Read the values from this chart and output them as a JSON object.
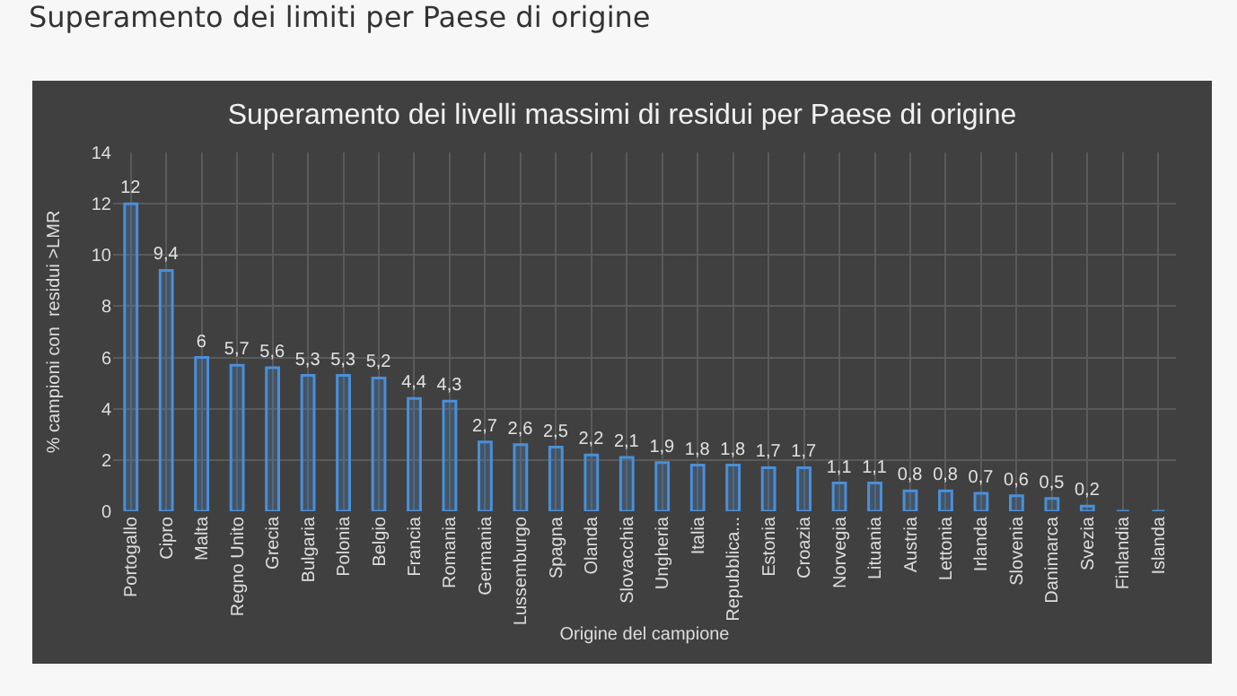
{
  "chart_data": {
    "type": "bar",
    "title": "Superamento dei limiti per Paese di origine",
    "subtitle": "Superamento dei livelli massimi di residui per Paese di origine",
    "xlabel": "Origine del campione",
    "ylabel": "% campioni con  residui >LMR",
    "categories": [
      "Portogallo",
      "Cipro",
      "Malta",
      "Regno Unito",
      "Grecia",
      "Bulgaria",
      "Polonia",
      "Belgio",
      "Francia",
      "Romania",
      "Germania",
      "Lussemburgo",
      "Spagna",
      "Olanda",
      "Slovacchia",
      "Ungheria",
      "Italia",
      "Repubblica...",
      "Estonia",
      "Croazia",
      "Norvegia",
      "Lituania",
      "Austria",
      "Lettonia",
      "Irlanda",
      "Slovenia",
      "Danimarca",
      "Svezia",
      "Finlandia",
      "Islanda"
    ],
    "values": [
      12,
      9.4,
      6,
      5.7,
      5.6,
      5.3,
      5.3,
      5.2,
      4.4,
      4.3,
      2.7,
      2.6,
      2.5,
      2.2,
      2.1,
      1.9,
      1.8,
      1.8,
      1.7,
      1.7,
      1.1,
      1.1,
      0.8,
      0.8,
      0.7,
      0.6,
      0.5,
      0.2,
      0,
      0
    ],
    "value_labels": [
      "12",
      "9,4",
      "6",
      "5,7",
      "5,6",
      "5,3",
      "5,3",
      "5,2",
      "4,4",
      "4,3",
      "2,7",
      "2,6",
      "2,5",
      "2,2",
      "2,1",
      "1,9",
      "1,8",
      "1,8",
      "1,7",
      "1,7",
      "1,1",
      "1,1",
      "0,8",
      "0,8",
      "0,7",
      "0,6",
      "0,5",
      "0,2",
      null,
      null
    ],
    "color": "#4a8fd8",
    "ylim": [
      0,
      14
    ],
    "yticks": [
      0,
      2,
      4,
      6,
      8,
      10,
      12,
      14
    ],
    "grid": true,
    "legend": false
  }
}
